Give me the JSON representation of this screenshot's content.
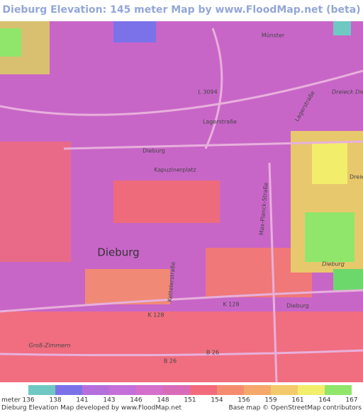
{
  "header": {
    "title": "Dieburg Elevation: 145 meter Map by www.FloodMap.net (beta)"
  },
  "map": {
    "labels": [
      "Münster",
      "L 3094",
      "Lagerstraße",
      "Dreieck Die",
      "Lagerstraße",
      "Dieburg",
      "Kapuzinerplatz",
      "Dreie",
      "Max-Planck-Straße",
      "Dieburg",
      "Dieburg",
      "Kettelerstraße",
      "K 128",
      "K 128",
      "Dieburg",
      "Groß-Zimmern",
      "B 26",
      "B 26"
    ]
  },
  "legend": {
    "unit": "meter",
    "ticks": [
      136,
      138,
      141,
      143,
      146,
      148,
      151,
      154,
      156,
      159,
      161,
      164,
      167
    ],
    "colors": [
      "#6fc9c2",
      "#7b72e9",
      "#b46fdc",
      "#c570d8",
      "#d46fcb",
      "#d96cb8",
      "#f26b7c",
      "#f58c6e",
      "#f5a86b",
      "#f3ca6b",
      "#f2ee6b",
      "#8fe66b",
      "#6cd86c"
    ]
  },
  "footer": {
    "left": "Dieburg Elevation Map developed by www.FloodMap.net",
    "right": "Base map © OpenStreetMap contributors"
  }
}
